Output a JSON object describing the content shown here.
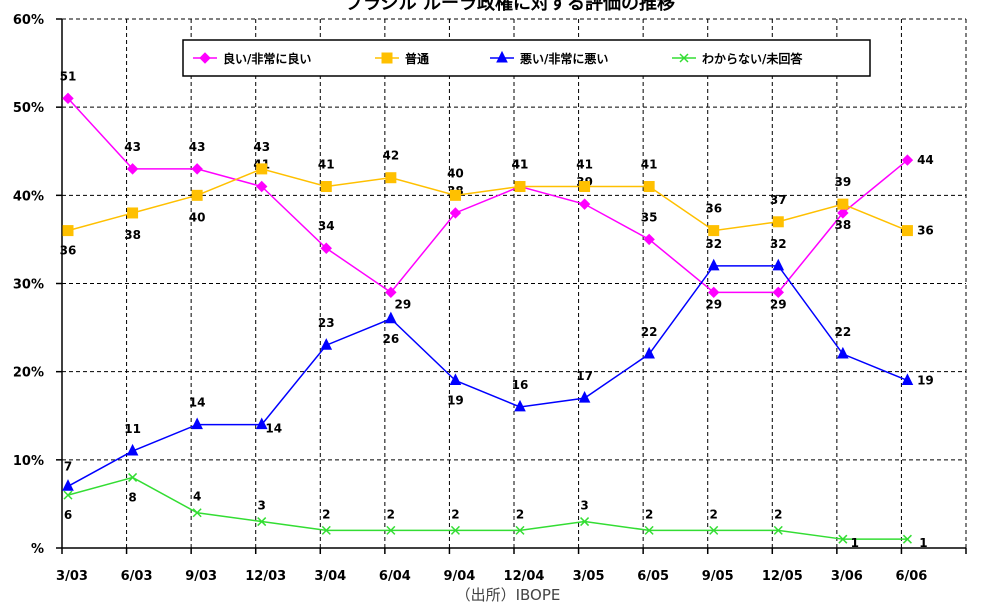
{
  "chart_data": {
    "type": "line",
    "title": "ブラジル ルーラ政権に対する評価の推移",
    "source": "（出所）IBOPE",
    "categories": [
      "3/03",
      "6/03",
      "9/03",
      "12/03",
      "3/04",
      "6/04",
      "9/04",
      "12/04",
      "3/05",
      "6/05",
      "9/05",
      "12/05",
      "3/06",
      "6/06"
    ],
    "ylim": [
      0,
      60
    ],
    "y_ticks": [
      0,
      10,
      20,
      30,
      40,
      50,
      60
    ],
    "y_tick_labels": [
      "%",
      "10%",
      "20%",
      "30%",
      "40%",
      "50%",
      "60%"
    ],
    "grid": true,
    "legend_position": "top",
    "series": [
      {
        "name": "良い/非常に良い",
        "color": "#ff00ff",
        "marker": "diamond",
        "values": [
          51,
          43,
          43,
          41,
          34,
          29,
          38,
          41,
          39,
          35,
          29,
          29,
          38,
          44
        ]
      },
      {
        "name": "普通",
        "color": "#ffc000",
        "marker": "square",
        "values": [
          36,
          38,
          40,
          43,
          41,
          42,
          40,
          41,
          41,
          41,
          36,
          37,
          39,
          36
        ]
      },
      {
        "name": "悪い/非常に悪い",
        "color": "#0000ff",
        "marker": "triangle",
        "values": [
          7,
          11,
          14,
          14,
          23,
          26,
          19,
          16,
          17,
          22,
          32,
          32,
          22,
          19
        ]
      },
      {
        "name": "わからない/未回答",
        "color": "#33dd33",
        "marker": "x",
        "values": [
          6,
          8,
          4,
          3,
          2,
          2,
          2,
          2,
          3,
          2,
          2,
          2,
          1,
          1
        ]
      }
    ]
  }
}
